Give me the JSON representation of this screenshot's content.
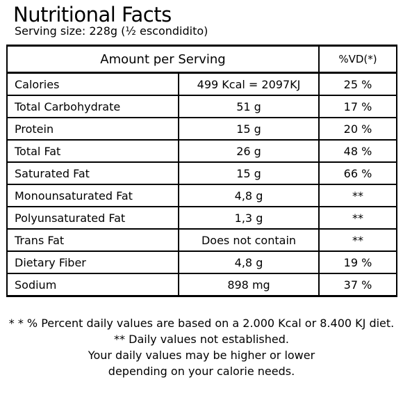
{
  "title": "Nutritional Facts",
  "serving_size": "Serving size: 228g (½ escondidito)",
  "table": {
    "header_amount": "Amount per Serving",
    "header_vd": "%VD(*)",
    "rows": [
      {
        "name": "Calories",
        "amount": "499 Kcal = 2097KJ",
        "vd": "25 %"
      },
      {
        "name": "Total Carbohydrate",
        "amount": "51 g",
        "vd": "17 %"
      },
      {
        "name": "Protein",
        "amount": "15 g",
        "vd": "20 %"
      },
      {
        "name": "Total Fat",
        "amount": "26 g",
        "vd": "48 %"
      },
      {
        "name": "Saturated Fat",
        "amount": "15 g",
        "vd": "66 %"
      },
      {
        "name": "Monounsaturated Fat",
        "amount": "4,8 g",
        "vd": "**"
      },
      {
        "name": "Polyunsaturated Fat",
        "amount": "1,3 g",
        "vd": "**"
      },
      {
        "name": "Trans Fat",
        "amount": "Does not contain",
        "vd": "**"
      },
      {
        "name": "Dietary Fiber",
        "amount": "4,8 g",
        "vd": "19 %"
      },
      {
        "name": "Sodium",
        "amount": "898 mg",
        "vd": "37 %"
      }
    ]
  },
  "footnotes": [
    "* * % Percent daily values are based on a 2.000 Kcal or 8.400 KJ diet.",
    "** Daily values not established.",
    "Your daily values may be higher or lower",
    "depending on your calorie needs."
  ]
}
